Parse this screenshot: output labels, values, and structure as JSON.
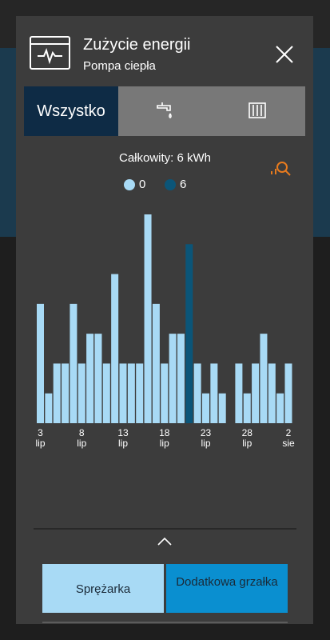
{
  "header": {
    "title": "Zużycie energii",
    "subtitle": "Pompa ciepła"
  },
  "tabs": [
    "Wszystko"
  ],
  "chart_data": {
    "type": "bar",
    "subtitle": "Całkowity: 6 kWh",
    "categories": [
      "3 lip",
      null,
      null,
      null,
      null,
      "8 lip",
      null,
      null,
      null,
      null,
      "13 lip",
      null,
      null,
      null,
      null,
      "18 lip",
      null,
      null,
      null,
      null,
      "23 lip",
      null,
      null,
      null,
      null,
      "28 lip",
      null,
      null,
      null,
      null,
      "2 sie"
    ],
    "series": [
      {
        "name": "0",
        "color": "#a8daf5",
        "values": [
          4,
          1,
          2,
          2,
          4,
          2,
          3,
          3,
          2,
          5,
          2,
          2,
          2,
          7,
          4,
          2,
          3,
          3,
          null,
          2,
          1,
          2,
          1,
          null,
          2,
          1,
          2,
          3,
          2,
          1,
          2
        ]
      },
      {
        "name": "6",
        "color": "#0b5578",
        "values": [
          null,
          null,
          null,
          null,
          null,
          null,
          null,
          null,
          null,
          null,
          null,
          null,
          null,
          null,
          null,
          null,
          null,
          null,
          6,
          null,
          null,
          null,
          null,
          null,
          null,
          null,
          null,
          null,
          null,
          null,
          null
        ]
      }
    ]
  },
  "buttons": [
    "Sprężarka",
    "Dodatkowa grzałka"
  ]
}
